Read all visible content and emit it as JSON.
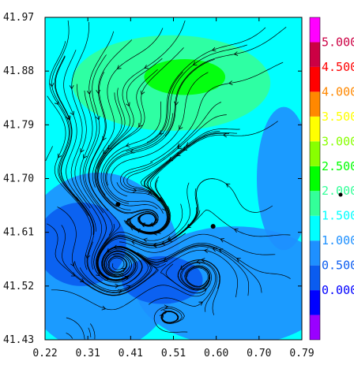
{
  "chart_data": {
    "type": "heatmap",
    "description_kind": "gridded scalar field with overlaid streamlines",
    "title": "",
    "xlabel": "",
    "ylabel": "",
    "xlim": [
      0.22,
      0.79
    ],
    "ylim": [
      41.43,
      41.97
    ],
    "x_ticks": [
      "0.22",
      "0.31",
      "0.41",
      "0.51",
      "0.60",
      "0.70",
      "0.79"
    ],
    "y_ticks": [
      "41.97",
      "41.88",
      "41.79",
      "41.70",
      "41.61",
      "41.52",
      "41.43"
    ],
    "grid": false,
    "legend": "none",
    "colorbar": {
      "placement": "right",
      "bins": [
        {
          "label": "",
          "color": "#9a00ff"
        },
        {
          "label": "0.000",
          "color": "#0000ff"
        },
        {
          "label": "0.500",
          "color": "#0a5cf0"
        },
        {
          "label": "1.000",
          "color": "#1e90ff"
        },
        {
          "label": "1.500",
          "color": "#00ffff"
        },
        {
          "label": "2.000",
          "color": "#33ff99"
        },
        {
          "label": "2.500",
          "color": "#00ff00"
        },
        {
          "label": "3.000",
          "color": "#88ff00"
        },
        {
          "label": "3.500",
          "color": "#ffff00"
        },
        {
          "label": "4.000",
          "color": "#ff8800"
        },
        {
          "label": "4.500",
          "color": "#ff0000"
        },
        {
          "label": "5.000",
          "color": "#cc0044"
        },
        {
          "label": "",
          "color": "#ff00ff"
        }
      ]
    },
    "markers": [
      {
        "symbol": "dot",
        "x": 0.382,
        "y": 41.657
      },
      {
        "symbol": "x",
        "x": 0.453,
        "y": 41.678
      },
      {
        "symbol": "dot",
        "x": 0.593,
        "y": 41.62
      }
    ],
    "regions": [
      {
        "level": 1.5,
        "x": 0.5,
        "y": 41.8,
        "rx": 0.3,
        "ry": 0.2
      },
      {
        "level": 2.0,
        "x": 0.5,
        "y": 41.86,
        "rx": 0.22,
        "ry": 0.08
      },
      {
        "level": 2.5,
        "x": 0.53,
        "y": 41.87,
        "rx": 0.09,
        "ry": 0.03
      },
      {
        "level": 1.0,
        "x": 0.34,
        "y": 41.56,
        "rx": 0.18,
        "ry": 0.15
      },
      {
        "level": 0.5,
        "x": 0.3,
        "y": 41.59,
        "rx": 0.1,
        "ry": 0.07
      },
      {
        "level": 1.0,
        "x": 0.64,
        "y": 41.52,
        "rx": 0.22,
        "ry": 0.1
      },
      {
        "level": 0.5,
        "x": 0.48,
        "y": 41.53,
        "rx": 0.09,
        "ry": 0.04
      },
      {
        "level": 1.0,
        "x": 0.75,
        "y": 41.7,
        "rx": 0.06,
        "ry": 0.12
      }
    ]
  }
}
